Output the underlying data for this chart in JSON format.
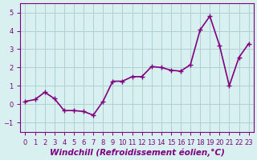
{
  "x": [
    0,
    1,
    2,
    3,
    4,
    5,
    6,
    7,
    8,
    9,
    10,
    11,
    12,
    13,
    14,
    15,
    16,
    17,
    18,
    19,
    20,
    21,
    22,
    23
  ],
  "y": [
    0.15,
    0.25,
    0.65,
    0.3,
    -0.35,
    -0.35,
    -0.4,
    -0.6,
    0.15,
    1.25,
    1.25,
    1.5,
    1.5,
    2.05,
    2.0,
    1.85,
    1.8,
    2.15,
    4.05,
    4.8,
    3.2,
    1.0,
    2.55,
    3.3
  ],
  "line_color": "#800080",
  "marker": "+",
  "markersize": 5,
  "linewidth": 1.2,
  "background_color": "#d8f0f0",
  "grid_color": "#b0d0d0",
  "xlabel": "Windchill (Refroidissement éolien,°C)",
  "ylim": [
    -1.5,
    5.5
  ],
  "xlim": [
    -0.5,
    23.5
  ],
  "yticks": [
    -1,
    0,
    1,
    2,
    3,
    4,
    5
  ],
  "xticks": [
    0,
    1,
    2,
    3,
    4,
    5,
    6,
    7,
    8,
    9,
    10,
    11,
    12,
    13,
    14,
    15,
    16,
    17,
    18,
    19,
    20,
    21,
    22,
    23
  ],
  "tick_color": "#800080",
  "label_color": "#800080",
  "xlabel_fontsize": 7.5,
  "tick_fontsize": 6
}
